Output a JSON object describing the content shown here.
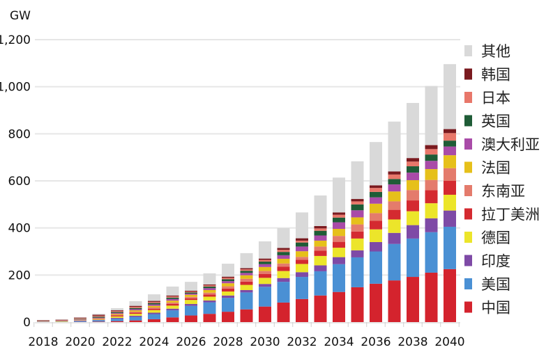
{
  "chart_data": {
    "type": "bar",
    "stacked": true,
    "title": "",
    "ylabel": "GW",
    "xlabel": "",
    "ylim": [
      0,
      1200
    ],
    "yticks": [
      0,
      200,
      400,
      600,
      800,
      1000,
      1200
    ],
    "ytick_labels": [
      "0",
      "200",
      "400",
      "600",
      "800",
      "1,000",
      "1,200"
    ],
    "categories": [
      "2018",
      "2019",
      "2020",
      "2021",
      "2022",
      "2023",
      "2024",
      "2025",
      "2026",
      "2027",
      "2028",
      "2029",
      "2030",
      "2031",
      "2032",
      "2033",
      "2034",
      "2035",
      "2036",
      "2037",
      "2038",
      "2039",
      "2040"
    ],
    "xtick_labels": [
      "2018",
      "2020",
      "2022",
      "2024",
      "2026",
      "2028",
      "2030",
      "2032",
      "2034",
      "2036",
      "2038",
      "2040"
    ],
    "grid": true,
    "legend_position": "right",
    "series": [
      {
        "name": "中国",
        "color": "#d4232d",
        "values": [
          0,
          0,
          1,
          2,
          4,
          7,
          12,
          20,
          28,
          35,
          44,
          54,
          66,
          83,
          98,
          113,
          128,
          148,
          163,
          177,
          192,
          210,
          225
        ]
      },
      {
        "name": "美国",
        "color": "#4a90d4",
        "values": [
          1,
          1,
          4,
          6,
          10,
          15,
          22,
          30,
          41,
          49,
          59,
          72,
          84,
          88,
          94,
          103,
          118,
          127,
          137,
          155,
          163,
          172,
          180
        ]
      },
      {
        "name": "印度",
        "color": "#7e4aa6",
        "values": [
          0,
          0,
          1,
          1,
          4,
          5,
          6,
          7,
          8,
          8,
          10,
          10,
          12,
          16,
          20,
          25,
          30,
          30,
          40,
          47,
          57,
          59,
          69
        ]
      },
      {
        "name": "德国",
        "color": "#ece52a",
        "values": [
          1,
          1,
          1,
          2,
          6,
          8,
          11,
          13,
          17,
          16,
          17,
          22,
          26,
          30,
          35,
          40,
          40,
          50,
          54,
          57,
          59,
          64,
          67
        ]
      },
      {
        "name": "拉丁美洲",
        "color": "#d42a30",
        "values": [
          0,
          0,
          1,
          2,
          4,
          5,
          6,
          7,
          7,
          9,
          12,
          14,
          16,
          18,
          18,
          22,
          25,
          30,
          36,
          41,
          46,
          55,
          59
        ]
      },
      {
        "name": "东南亚",
        "color": "#e47b6c",
        "values": [
          0,
          0,
          1,
          1,
          3,
          4,
          5,
          6,
          6,
          8,
          10,
          12,
          13,
          14,
          12,
          18,
          25,
          30,
          33,
          36,
          44,
          44,
          54
        ]
      },
      {
        "name": "法国",
        "color": "#e6c01a",
        "values": [
          0,
          1,
          1,
          2,
          4,
          6,
          7,
          8,
          9,
          11,
          13,
          15,
          17,
          20,
          24,
          25,
          30,
          30,
          40,
          42,
          42,
          46,
          55
        ]
      },
      {
        "name": "澳大利亚",
        "color": "#a94ba8",
        "values": [
          1,
          1,
          2,
          3,
          4,
          5,
          6,
          7,
          5,
          8,
          9,
          10,
          12,
          15,
          20,
          22,
          28,
          30,
          27,
          30,
          32,
          35,
          37
        ]
      },
      {
        "name": "英国",
        "color": "#1f5c37",
        "values": [
          1,
          1,
          2,
          4,
          4,
          5,
          6,
          6,
          5,
          7,
          8,
          9,
          11,
          14,
          17,
          20,
          20,
          25,
          23,
          23,
          27,
          27,
          25
        ]
      },
      {
        "name": "日本",
        "color": "#e8776a",
        "values": [
          2,
          3,
          3,
          4,
          4,
          5,
          5,
          5,
          4,
          5,
          6,
          6,
          7,
          9,
          8,
          10,
          12,
          13,
          17,
          19,
          20,
          23,
          32
        ]
      },
      {
        "name": "韩国",
        "color": "#7a1a1f",
        "values": [
          2,
          2,
          2,
          4,
          3,
          4,
          4,
          4,
          3,
          4,
          5,
          5,
          6,
          8,
          10,
          10,
          10,
          10,
          11,
          13,
          15,
          17,
          17
        ]
      },
      {
        "name": "其他",
        "color": "#d9d9d9",
        "values": [
          1,
          2,
          2,
          4,
          9,
          20,
          28,
          38,
          38,
          47,
          55,
          64,
          73,
          84,
          110,
          130,
          148,
          160,
          184,
          212,
          234,
          251,
          276
        ]
      }
    ],
    "legend_order": [
      "其他",
      "韩国",
      "日本",
      "英国",
      "澳大利亚",
      "法国",
      "东南亚",
      "拉丁美洲",
      "德国",
      "印度",
      "美国",
      "中国"
    ]
  }
}
